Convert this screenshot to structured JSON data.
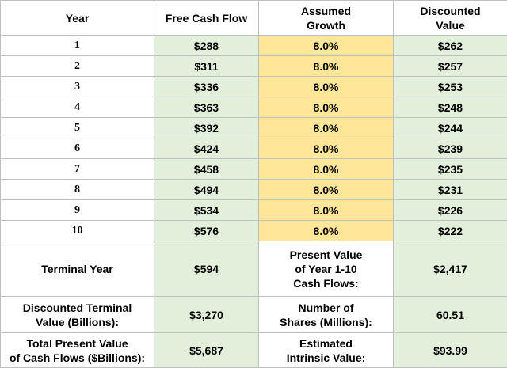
{
  "headers": {
    "year": "Year",
    "fcf": "Free Cash Flow",
    "growth": "Assumed\nGrowth",
    "discounted": "Discounted\nValue"
  },
  "rows": [
    {
      "year": "1",
      "fcf": "$288",
      "growth": "8.0%",
      "discounted": "$262"
    },
    {
      "year": "2",
      "fcf": "$311",
      "growth": "8.0%",
      "discounted": "$257"
    },
    {
      "year": "3",
      "fcf": "$336",
      "growth": "8.0%",
      "discounted": "$253"
    },
    {
      "year": "4",
      "fcf": "$363",
      "growth": "8.0%",
      "discounted": "$248"
    },
    {
      "year": "5",
      "fcf": "$392",
      "growth": "8.0%",
      "discounted": "$244"
    },
    {
      "year": "6",
      "fcf": "$424",
      "growth": "8.0%",
      "discounted": "$239"
    },
    {
      "year": "7",
      "fcf": "$458",
      "growth": "8.0%",
      "discounted": "$235"
    },
    {
      "year": "8",
      "fcf": "$494",
      "growth": "8.0%",
      "discounted": "$231"
    },
    {
      "year": "9",
      "fcf": "$534",
      "growth": "8.0%",
      "discounted": "$226"
    },
    {
      "year": "10",
      "fcf": "$576",
      "growth": "8.0%",
      "discounted": "$222"
    }
  ],
  "summary": {
    "terminal_year_label": "Terminal Year",
    "terminal_year_value": "$594",
    "pv_label": "Present Value\nof Year 1-10\nCash Flows:",
    "pv_value": "$2,417",
    "discounted_terminal_label": "Discounted Terminal\nValue (Billions):",
    "discounted_terminal_value": "$3,270",
    "shares_label": "Number of\nShares (Millions):",
    "shares_value": "60.51",
    "total_pv_label": "Total Present Value\nof Cash Flows ($Billions):",
    "total_pv_value": "$5,687",
    "intrinsic_label": "Estimated\nIntrinsic Value:",
    "intrinsic_value": "$93.99"
  },
  "colors": {
    "green": "#e2efda",
    "yellow": "#ffe699",
    "border": "#bfbfbf"
  }
}
